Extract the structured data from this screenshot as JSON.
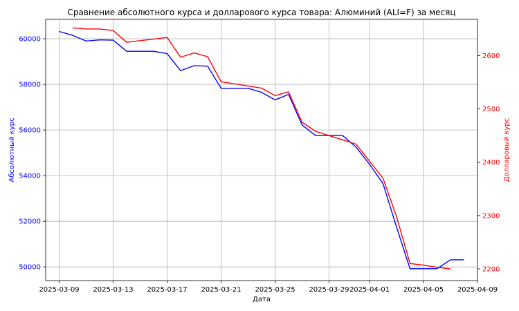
{
  "chart_data": {
    "type": "line",
    "title": "Сравнение абсолютного курса и долларового курса товара: Алюминий (ALI=F) за месяц",
    "xlabel": "Дата",
    "ylabel_left": "Абсолютный курс",
    "ylabel_right": "Долларовый курс",
    "grid": true,
    "x_range": [
      "2025-03-08",
      "2025-04-09"
    ],
    "x_ticks": [
      "2025-03-09",
      "2025-03-13",
      "2025-03-17",
      "2025-03-21",
      "2025-03-25",
      "2025-03-29",
      "2025-04-01",
      "2025-04-05",
      "2025-04-09"
    ],
    "y_left": {
      "range": [
        49400,
        60850
      ],
      "ticks": [
        50000,
        52000,
        54000,
        56000,
        58000,
        60000
      ],
      "tick_labels": [
        "50000",
        "52000",
        "54000",
        "56000",
        "58000",
        "60000"
      ]
    },
    "y_right": {
      "range": [
        2178,
        2668
      ],
      "ticks": [
        2200,
        2300,
        2400,
        2500,
        2600
      ],
      "tick_labels": [
        "2200",
        "2300",
        "2400",
        "2500",
        "2600"
      ]
    },
    "colors": {
      "absolute": "#0000ff",
      "dollar": "#ff0000"
    },
    "series": [
      {
        "axis": "left",
        "color": "#0000ff",
        "points": [
          [
            "2025-03-09",
            60320
          ],
          [
            "2025-03-10",
            60150
          ],
          [
            "2025-03-11",
            59900
          ],
          [
            "2025-03-12",
            59950
          ],
          [
            "2025-03-13",
            59940
          ],
          [
            "2025-03-14",
            59450
          ],
          [
            "2025-03-15",
            59450
          ],
          [
            "2025-03-16",
            59450
          ],
          [
            "2025-03-17",
            59350
          ],
          [
            "2025-03-18",
            58600
          ],
          [
            "2025-03-19",
            58820
          ],
          [
            "2025-03-20",
            58800
          ],
          [
            "2025-03-21",
            57830
          ],
          [
            "2025-03-22",
            57830
          ],
          [
            "2025-03-23",
            57830
          ],
          [
            "2025-03-24",
            57650
          ],
          [
            "2025-03-25",
            57320
          ],
          [
            "2025-03-26",
            57560
          ],
          [
            "2025-03-27",
            56220
          ],
          [
            "2025-03-28",
            55760
          ],
          [
            "2025-03-29",
            55760
          ],
          [
            "2025-03-30",
            55760
          ],
          [
            "2025-03-31",
            55250
          ],
          [
            "2025-04-01",
            54500
          ],
          [
            "2025-04-02",
            53650
          ],
          [
            "2025-04-03",
            51750
          ],
          [
            "2025-04-04",
            49920
          ],
          [
            "2025-04-05",
            49920
          ],
          [
            "2025-04-06",
            49920
          ],
          [
            "2025-04-07",
            50310
          ],
          [
            "2025-04-08",
            50310
          ]
        ]
      },
      {
        "axis": "right",
        "color": "#ff0000",
        "points": [
          [
            "2025-03-10",
            2652
          ],
          [
            "2025-03-11",
            2650
          ],
          [
            "2025-03-12",
            2650
          ],
          [
            "2025-03-13",
            2647
          ],
          [
            "2025-03-14",
            2625
          ],
          [
            "2025-03-15",
            2628
          ],
          [
            "2025-03-16",
            2631
          ],
          [
            "2025-03-17",
            2634
          ],
          [
            "2025-03-18",
            2597
          ],
          [
            "2025-03-19",
            2605
          ],
          [
            "2025-03-20",
            2598
          ],
          [
            "2025-03-21",
            2551
          ],
          [
            "2025-03-22",
            2547
          ],
          [
            "2025-03-23",
            2543
          ],
          [
            "2025-03-24",
            2539
          ],
          [
            "2025-03-25",
            2525
          ],
          [
            "2025-03-26",
            2532
          ],
          [
            "2025-03-27",
            2475
          ],
          [
            "2025-03-28",
            2458
          ],
          [
            "2025-03-29",
            2450
          ],
          [
            "2025-03-30",
            2442
          ],
          [
            "2025-03-31",
            2434
          ],
          [
            "2025-04-01",
            2402
          ],
          [
            "2025-04-02",
            2370
          ],
          [
            "2025-04-03",
            2298
          ],
          [
            "2025-04-04",
            2210
          ],
          [
            "2025-04-05",
            2207
          ],
          [
            "2025-04-06",
            2203
          ],
          [
            "2025-04-07",
            2200
          ]
        ]
      }
    ]
  }
}
